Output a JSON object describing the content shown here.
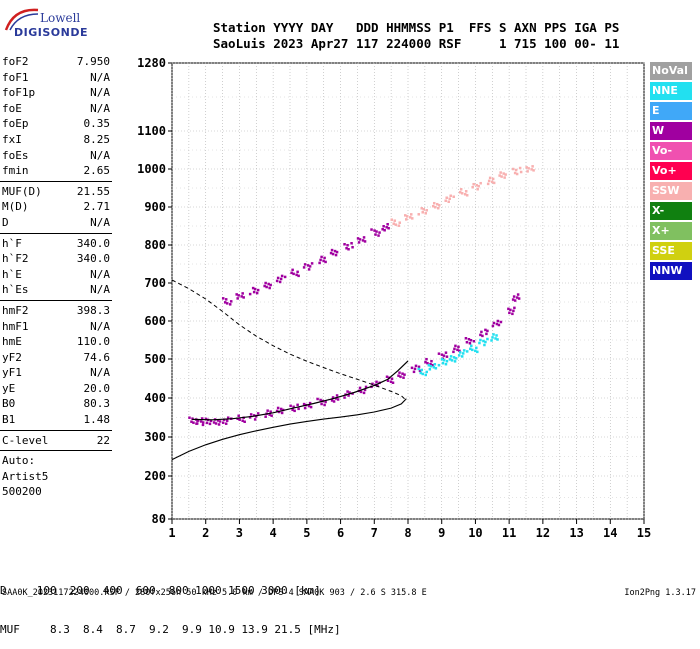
{
  "logo": {
    "line1": "Lowell",
    "line2": "DIGISONDE"
  },
  "header": {
    "line1": "Station YYYY DAY   DDD HHMMSS P1  FFS S AXN PPS IGA PS",
    "line2": "SaoLuis 2023 Apr27 117 224000 RSF     1 715 100 00- 11"
  },
  "parameters": {
    "group1": [
      {
        "label": "foF2",
        "value": "7.950"
      },
      {
        "label": "foF1",
        "value": "N/A"
      },
      {
        "label": "foF1p",
        "value": "N/A"
      },
      {
        "label": "foE",
        "value": "N/A"
      },
      {
        "label": "foEp",
        "value": "0.35"
      },
      {
        "label": "fxI",
        "value": "8.25"
      },
      {
        "label": "foEs",
        "value": "N/A"
      },
      {
        "label": "fmin",
        "value": "2.65"
      }
    ],
    "group2": [
      {
        "label": "MUF(D)",
        "value": "21.55"
      },
      {
        "label": "M(D)",
        "value": "2.71"
      },
      {
        "label": "D",
        "value": "N/A"
      }
    ],
    "group3": [
      {
        "label": "h`F",
        "value": "340.0"
      },
      {
        "label": "h`F2",
        "value": "340.0"
      },
      {
        "label": "h`E",
        "value": "N/A"
      },
      {
        "label": "h`Es",
        "value": "N/A"
      }
    ],
    "group4": [
      {
        "label": "hmF2",
        "value": "398.3"
      },
      {
        "label": "hmF1",
        "value": "N/A"
      },
      {
        "label": "hmE",
        "value": "110.0"
      },
      {
        "label": "yF2",
        "value": "74.6"
      },
      {
        "label": "yF1",
        "value": "N/A"
      },
      {
        "label": "yE",
        "value": "20.0"
      },
      {
        "label": "B0",
        "value": "80.3"
      },
      {
        "label": "B1",
        "value": "1.48"
      }
    ],
    "group5": [
      {
        "label": "C-level",
        "value": "22"
      }
    ],
    "group6": [
      {
        "label": "Auto:",
        "value": ""
      },
      {
        "label": "Artist5",
        "value": ""
      },
      {
        "label": "500200",
        "value": ""
      }
    ]
  },
  "legend": [
    {
      "label": "NoVal",
      "color": "#a0a0a0"
    },
    {
      "label": "NNE",
      "color": "#22e0f0"
    },
    {
      "label": "E",
      "color": "#40a8f8"
    },
    {
      "label": "W",
      "color": "#a000a0"
    },
    {
      "label": "Vo-",
      "color": "#f050b0"
    },
    {
      "label": "Vo+",
      "color": "#ff0050"
    },
    {
      "label": "SSW",
      "color": "#f8b0b0"
    },
    {
      "label": "X-",
      "color": "#108010"
    },
    {
      "label": "X+",
      "color": "#80c060"
    },
    {
      "label": "SSE",
      "color": "#d0d010"
    },
    {
      "label": "NNW",
      "color": "#1010c0"
    }
  ],
  "muf_table": {
    "d_label": "D",
    "d_values": [
      "100",
      "200",
      "400",
      "600",
      "800",
      "1000",
      "1500",
      "3000"
    ],
    "d_unit": "[km]",
    "muf_label": "MUF",
    "muf_values": [
      "8.3",
      "8.4",
      "8.7",
      "9.2",
      "9.9",
      "10.9",
      "13.9",
      "21.5"
    ],
    "muf_unit": "[MHz]"
  },
  "footer": {
    "left": "SAA0K_2023117224000.RSF / 280fx256h 50 kHz 5.0 km / DPS-4 SAA0K 903 / 2.6 S 315.8 E",
    "right": "Ion2Png 1.3.17"
  },
  "chart_data": {
    "type": "scatter",
    "xlim": [
      1,
      15
    ],
    "ylim": [
      80,
      1280
    ],
    "x_ticks": [
      "1",
      "2",
      "3",
      "4",
      "5",
      "6",
      "7",
      "8",
      "9",
      "10",
      "11",
      "12",
      "13",
      "14",
      "15"
    ],
    "y_ticks": [
      "80",
      "200",
      "300",
      "400",
      "500",
      "600",
      "700",
      "800",
      "900",
      "1000",
      "1100",
      "1280"
    ],
    "y_tick_values": [
      80,
      200,
      300,
      400,
      500,
      600,
      700,
      800,
      900,
      1000,
      1100,
      1280
    ],
    "grid": true,
    "series": [
      {
        "color": "#a000a0",
        "points": [
          [
            1.6,
            345
          ],
          [
            1.8,
            343
          ],
          [
            2.0,
            342
          ],
          [
            2.3,
            343
          ],
          [
            2.6,
            345
          ],
          [
            3.0,
            350
          ],
          [
            3.4,
            356
          ],
          [
            3.8,
            363
          ],
          [
            4.2,
            370
          ],
          [
            4.6,
            378
          ],
          [
            5.0,
            385
          ],
          [
            5.4,
            393
          ],
          [
            5.8,
            402
          ],
          [
            6.2,
            412
          ],
          [
            6.6,
            424
          ],
          [
            7.0,
            437
          ],
          [
            7.4,
            450
          ],
          [
            7.8,
            463
          ],
          [
            8.2,
            478
          ],
          [
            8.6,
            495
          ],
          [
            9.0,
            512
          ],
          [
            9.4,
            530
          ],
          [
            9.8,
            550
          ],
          [
            10.2,
            572
          ],
          [
            10.6,
            598
          ],
          [
            11.0,
            630
          ],
          [
            11.2,
            665
          ]
        ]
      },
      {
        "color": "#22e0f0",
        "points": [
          [
            8.4,
            470
          ],
          [
            8.7,
            482
          ],
          [
            9.0,
            495
          ],
          [
            9.3,
            505
          ],
          [
            9.6,
            518
          ],
          [
            9.9,
            530
          ],
          [
            10.2,
            548
          ],
          [
            10.5,
            560
          ]
        ]
      },
      {
        "color": "#a000a0",
        "points": [
          [
            2.6,
            655
          ],
          [
            3.0,
            668
          ],
          [
            3.4,
            682
          ],
          [
            3.8,
            698
          ],
          [
            4.2,
            714
          ],
          [
            4.6,
            730
          ],
          [
            5.0,
            747
          ],
          [
            5.4,
            764
          ],
          [
            5.8,
            782
          ],
          [
            6.2,
            800
          ],
          [
            6.6,
            818
          ],
          [
            7.0,
            836
          ],
          [
            7.3,
            850
          ]
        ]
      },
      {
        "color": "#f8b0b0",
        "points": [
          [
            7.6,
            862
          ],
          [
            8.0,
            876
          ],
          [
            8.4,
            892
          ],
          [
            8.8,
            908
          ],
          [
            9.2,
            925
          ],
          [
            9.6,
            942
          ],
          [
            10.0,
            958
          ],
          [
            10.4,
            972
          ],
          [
            10.8,
            986
          ],
          [
            11.2,
            998
          ],
          [
            11.6,
            1005
          ]
        ]
      }
    ],
    "virtual_trace": {
      "color": "#000000",
      "dash": "4,3",
      "points": [
        [
          1.0,
          708
        ],
        [
          1.5,
          685
        ],
        [
          2.0,
          658
        ],
        [
          2.5,
          625
        ],
        [
          3.0,
          590
        ],
        [
          3.5,
          560
        ],
        [
          4.0,
          535
        ],
        [
          4.5,
          513
        ],
        [
          5.0,
          494
        ],
        [
          5.5,
          478
        ],
        [
          6.0,
          462
        ],
        [
          6.5,
          448
        ],
        [
          7.0,
          433
        ],
        [
          7.5,
          417
        ],
        [
          7.8,
          406
        ],
        [
          7.9,
          398
        ]
      ]
    },
    "true_height": {
      "color": "#000000",
      "points": [
        [
          1.0,
          242
        ],
        [
          1.5,
          263
        ],
        [
          2.0,
          280
        ],
        [
          2.5,
          294
        ],
        [
          3.0,
          306
        ],
        [
          3.5,
          316
        ],
        [
          4.0,
          325
        ],
        [
          4.5,
          333
        ],
        [
          5.0,
          340
        ],
        [
          5.5,
          346
        ],
        [
          6.0,
          351
        ],
        [
          6.5,
          357
        ],
        [
          7.0,
          364
        ],
        [
          7.5,
          374
        ],
        [
          7.8,
          385
        ],
        [
          7.95,
          398
        ]
      ]
    },
    "trace_line": {
      "color": "#000000",
      "points": [
        [
          1.6,
          345
        ],
        [
          2.2,
          344
        ],
        [
          2.8,
          347
        ],
        [
          3.4,
          353
        ],
        [
          4.0,
          362
        ],
        [
          4.6,
          374
        ],
        [
          5.2,
          386
        ],
        [
          5.8,
          399
        ],
        [
          6.4,
          414
        ],
        [
          7.0,
          432
        ],
        [
          7.4,
          448
        ],
        [
          7.7,
          470
        ],
        [
          8.0,
          495
        ]
      ]
    }
  }
}
